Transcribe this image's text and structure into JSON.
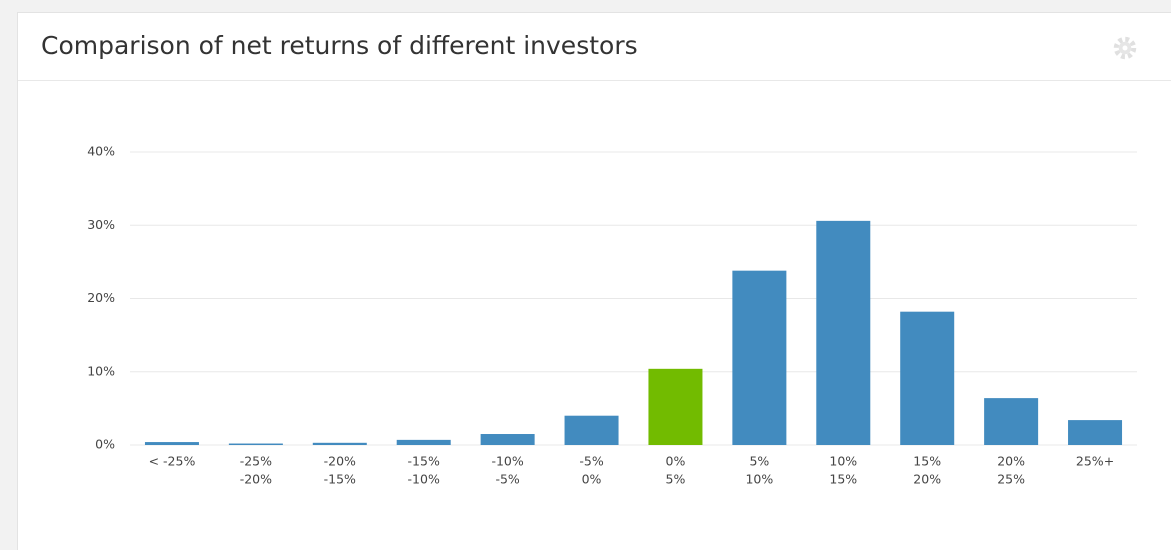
{
  "chart_data": {
    "type": "bar",
    "title": "Comparison of net returns of different investors",
    "categories": [
      [
        "< -25%"
      ],
      [
        "-25%",
        "-20%"
      ],
      [
        "-20%",
        "-15%"
      ],
      [
        "-15%",
        "-10%"
      ],
      [
        "-10%",
        "-5%"
      ],
      [
        "-5%",
        "0%"
      ],
      [
        "0%",
        "5%"
      ],
      [
        "5%",
        "10%"
      ],
      [
        "10%",
        "15%"
      ],
      [
        "15%",
        "20%"
      ],
      [
        "20%",
        "25%"
      ],
      [
        "25%+"
      ]
    ],
    "values": [
      0.4,
      0.2,
      0.3,
      0.7,
      1.5,
      4.0,
      10.4,
      23.8,
      30.6,
      18.2,
      6.4,
      3.4
    ],
    "colors": [
      "#428bbf",
      "#428bbf",
      "#428bbf",
      "#428bbf",
      "#428bbf",
      "#428bbf",
      "#72bb00",
      "#428bbf",
      "#428bbf",
      "#428bbf",
      "#428bbf",
      "#428bbf"
    ],
    "ylim": [
      0,
      40
    ],
    "yticks": [
      {
        "value": 0,
        "label": "0%"
      },
      {
        "value": 10,
        "label": "10%"
      },
      {
        "value": 20,
        "label": "20%"
      },
      {
        "value": 30,
        "label": "30%"
      },
      {
        "value": 40,
        "label": "40%"
      }
    ],
    "grid": true
  }
}
